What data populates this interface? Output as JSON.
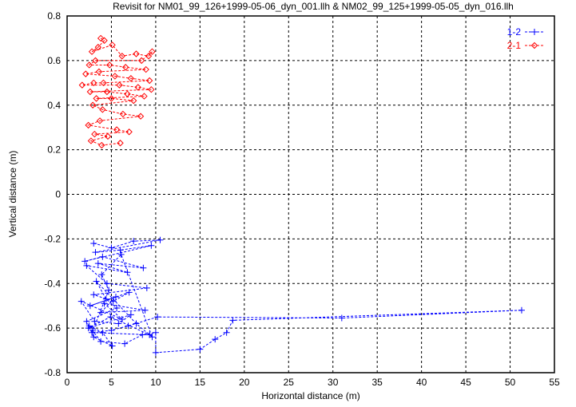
{
  "chart_data": {
    "type": "scatter",
    "title": "Revisit for NM01_99_126+1999-05-06_dyn_001.llh & NM02_99_125+1999-05-05_dyn_016.llh",
    "xlabel": "Horizontal distance (m)",
    "ylabel": "Vertical distance (m)",
    "xlim": [
      0,
      55
    ],
    "ylim": [
      -0.8,
      0.8
    ],
    "xticks": [
      0,
      5,
      10,
      15,
      20,
      25,
      30,
      35,
      40,
      45,
      50,
      55
    ],
    "yticks": [
      -0.8,
      -0.6,
      -0.4,
      -0.2,
      0,
      0.2,
      0.4,
      0.6,
      0.8
    ],
    "grid": true,
    "legend_position": "top-right",
    "series": [
      {
        "name": "1-2",
        "color": "#0000ff",
        "marker": "plus",
        "line": "dashed",
        "x": [
          3,
          5,
          7.5,
          10.5,
          3.2,
          6,
          9.5,
          2,
          4,
          8.6,
          3.5,
          6.8,
          2.2,
          4.5,
          9,
          3,
          5.2,
          7,
          2.6,
          5.5,
          3.8,
          8.8,
          4.2,
          6.2,
          1.6,
          3.1,
          5.8,
          7.2,
          2.4,
          4.9,
          9.3,
          2.8,
          5,
          6.9,
          10.2,
          31,
          51.3,
          18.7,
          18,
          16.7,
          15,
          10,
          10,
          8.5,
          6.5,
          3.8,
          2.5,
          4,
          5.1,
          3,
          2.2,
          5.6,
          4.4,
          3.3,
          7.8,
          9.6,
          6.1,
          3.9,
          4.7,
          2.9
        ],
        "y": [
          -0.22,
          -0.24,
          -0.21,
          -0.205,
          -0.26,
          -0.25,
          -0.23,
          -0.3,
          -0.28,
          -0.33,
          -0.31,
          -0.35,
          -0.32,
          -0.4,
          -0.42,
          -0.45,
          -0.48,
          -0.44,
          -0.5,
          -0.46,
          -0.53,
          -0.52,
          -0.49,
          -0.56,
          -0.48,
          -0.57,
          -0.58,
          -0.54,
          -0.6,
          -0.55,
          -0.63,
          -0.62,
          -0.61,
          -0.59,
          -0.55,
          -0.555,
          -0.52,
          -0.565,
          -0.62,
          -0.65,
          -0.695,
          -0.71,
          -0.62,
          -0.63,
          -0.67,
          -0.66,
          -0.59,
          -0.62,
          -0.68,
          -0.64,
          -0.57,
          -0.51,
          -0.47,
          -0.39,
          -0.58,
          -0.64,
          -0.27,
          -0.36,
          -0.43,
          -0.61
        ]
      },
      {
        "name": "2-1",
        "color": "#ff0000",
        "marker": "diamond",
        "line": "dashed",
        "x": [
          3.8,
          4.2,
          3.5,
          2.8,
          5.1,
          6.2,
          7.8,
          9.2,
          9.6,
          8.4,
          3.2,
          2.5,
          4.8,
          6.6,
          8.9,
          3.6,
          2.1,
          5.4,
          7.2,
          9.3,
          4.1,
          3.0,
          1.7,
          5.9,
          8.0,
          9.5,
          2.6,
          4.5,
          6.8,
          8.7,
          3.3,
          5.0,
          7.5,
          2.9,
          4.0,
          6.3,
          8.3,
          3.7,
          2.4,
          5.6,
          7.0,
          3.1,
          4.6,
          2.7,
          3.9,
          6.0
        ],
        "y": [
          0.7,
          0.69,
          0.66,
          0.64,
          0.67,
          0.62,
          0.63,
          0.62,
          0.64,
          0.6,
          0.6,
          0.58,
          0.58,
          0.57,
          0.56,
          0.55,
          0.54,
          0.53,
          0.52,
          0.51,
          0.5,
          0.5,
          0.49,
          0.49,
          0.48,
          0.47,
          0.46,
          0.46,
          0.45,
          0.44,
          0.43,
          0.43,
          0.42,
          0.4,
          0.38,
          0.36,
          0.35,
          0.33,
          0.31,
          0.29,
          0.28,
          0.27,
          0.26,
          0.24,
          0.22,
          0.23
        ]
      }
    ]
  }
}
